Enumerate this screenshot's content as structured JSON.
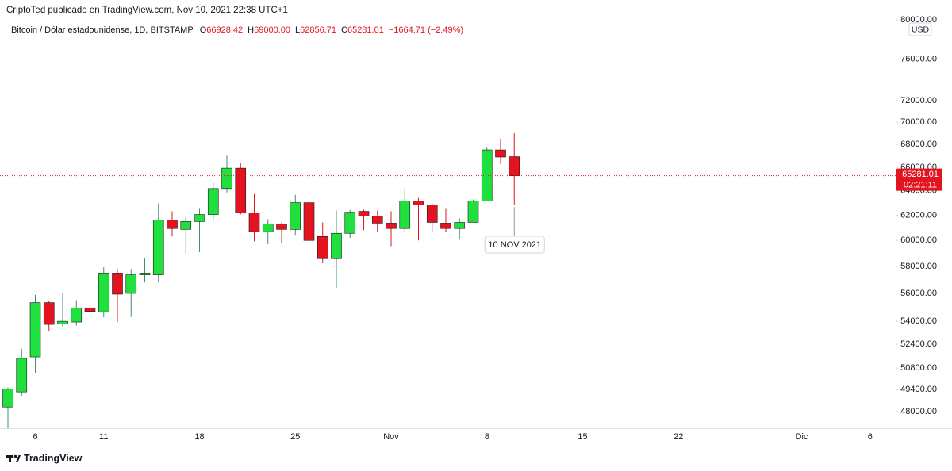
{
  "header": {
    "publisher": "CriptoTed publicado en TradingView.com, Nov 10, 2021 22:38 UTC+1",
    "symbol": "Bitcoin / Dólar estadounidense, 1D, BITSTAMP",
    "ohlc": [
      {
        "label": "O",
        "value": "66928.42"
      },
      {
        "label": "H",
        "value": "69000.00"
      },
      {
        "label": "L",
        "value": "62856.71"
      },
      {
        "label": "C",
        "value": "65281.01"
      }
    ],
    "change": "−1664.71 (−2.49%)"
  },
  "footer": {
    "brand": "TradingView"
  },
  "chart_data": {
    "type": "candlestick",
    "currency": "USD",
    "log_scale": true,
    "grid": false,
    "up_color": "#1fe03c",
    "down_color": "#e3141f",
    "countdown": "02:21:11",
    "crosshair_label": "10 NOV 2021",
    "categories": [
      null,
      null,
      "6",
      null,
      null,
      null,
      null,
      "11",
      null,
      null,
      null,
      null,
      null,
      null,
      "18",
      null,
      null,
      null,
      null,
      null,
      null,
      "25",
      null,
      null,
      null,
      null,
      null,
      null,
      "Nov",
      null,
      null,
      null,
      null,
      null,
      null,
      "8",
      null,
      null,
      null,
      null,
      null,
      null,
      "15",
      null,
      null,
      null,
      null,
      null,
      null,
      "22",
      null,
      null,
      null,
      null,
      null,
      null,
      null,
      null,
      "Dic",
      null,
      null,
      null,
      null,
      "6",
      null
    ],
    "open": [
      48290,
      49250,
      51550,
      55330,
      53800,
      53950,
      54950,
      54670,
      57500,
      56000,
      57370,
      57370,
      61620,
      60870,
      61500,
      62060,
      64200,
      65930,
      62200,
      60690,
      61310,
      60870,
      63030,
      60310,
      58590,
      60560,
      62320,
      61940,
      61370,
      60940,
      63160,
      62840,
      61370,
      60940,
      61430,
      63160,
      67520,
      66928.42,
      null,
      null,
      null,
      null,
      null,
      null,
      null,
      null,
      null,
      null,
      null,
      null,
      null,
      null,
      null,
      null,
      null,
      null,
      null,
      null,
      null,
      null,
      null,
      null,
      null,
      null,
      null
    ],
    "high": [
      49540,
      52100,
      55890,
      55440,
      56050,
      55500,
      55780,
      57940,
      57800,
      57800,
      58600,
      62970,
      62320,
      61870,
      62580,
      64700,
      67000,
      66420,
      63740,
      61690,
      61430,
      63680,
      63230,
      61430,
      62390,
      62450,
      62450,
      62390,
      62320,
      64200,
      63420,
      62970,
      62580,
      61750,
      63290,
      67720,
      68520,
      69000,
      null,
      null,
      null,
      null,
      null,
      null,
      null,
      null,
      null,
      null,
      null,
      null,
      null,
      null,
      null,
      null,
      null,
      null,
      null,
      null,
      null,
      null,
      null,
      null,
      null,
      null,
      null
    ],
    "low": [
      46960,
      48950,
      50500,
      53340,
      53600,
      53700,
      51000,
      54280,
      53950,
      54300,
      56800,
      56800,
      60310,
      59000,
      59100,
      61560,
      63870,
      62060,
      59940,
      59700,
      59760,
      60440,
      59700,
      58240,
      56390,
      60190,
      60810,
      60690,
      59560,
      60620,
      60000,
      60690,
      60690,
      60060,
      61430,
      63160,
      66280,
      62856.71,
      null,
      null,
      null,
      null,
      null,
      null,
      null,
      null,
      null,
      null,
      null,
      null,
      null,
      null,
      null,
      null,
      null,
      null,
      null,
      null,
      null,
      null,
      null,
      null,
      null,
      null,
      null
    ],
    "close": [
      49440,
      51450,
      55330,
      53780,
      54000,
      54950,
      54700,
      57500,
      55940,
      57370,
      57500,
      61620,
      60940,
      61500,
      62060,
      64200,
      65930,
      62200,
      60690,
      61310,
      60870,
      63030,
      60000,
      58590,
      60560,
      62250,
      61940,
      61370,
      60940,
      63160,
      62840,
      61430,
      60940,
      61430,
      63160,
      67520,
      66900,
      65281.01,
      null,
      null,
      null,
      null,
      null,
      null,
      null,
      null,
      null,
      null,
      null,
      null,
      null,
      null,
      null,
      null,
      null,
      null,
      null,
      null,
      null,
      null,
      null,
      null,
      null,
      null,
      null
    ],
    "ylim": [
      46970,
      82100
    ],
    "yticks": [
      {
        "value": 48000,
        "label": "48000.00"
      },
      {
        "value": 49400,
        "label": "49400.00"
      },
      {
        "value": 50800,
        "label": "50800.00"
      },
      {
        "value": 52400,
        "label": "52400.00"
      },
      {
        "value": 54000,
        "label": "54000.00"
      },
      {
        "value": 56000,
        "label": "56000.00"
      },
      {
        "value": 58000,
        "label": "58000.00"
      },
      {
        "value": 60000,
        "label": "60000.00"
      },
      {
        "value": 62000,
        "label": "62000.00"
      },
      {
        "value": 64000,
        "label": "64000.00"
      },
      {
        "value": 66000,
        "label": "66000.00"
      },
      {
        "value": 68000,
        "label": "68000.00"
      },
      {
        "value": 70000,
        "label": "70000.00"
      },
      {
        "value": 72000,
        "label": "72000.00"
      },
      {
        "value": 76000,
        "label": "76000.00"
      },
      {
        "value": 80000,
        "label": "80000.00"
      }
    ]
  }
}
